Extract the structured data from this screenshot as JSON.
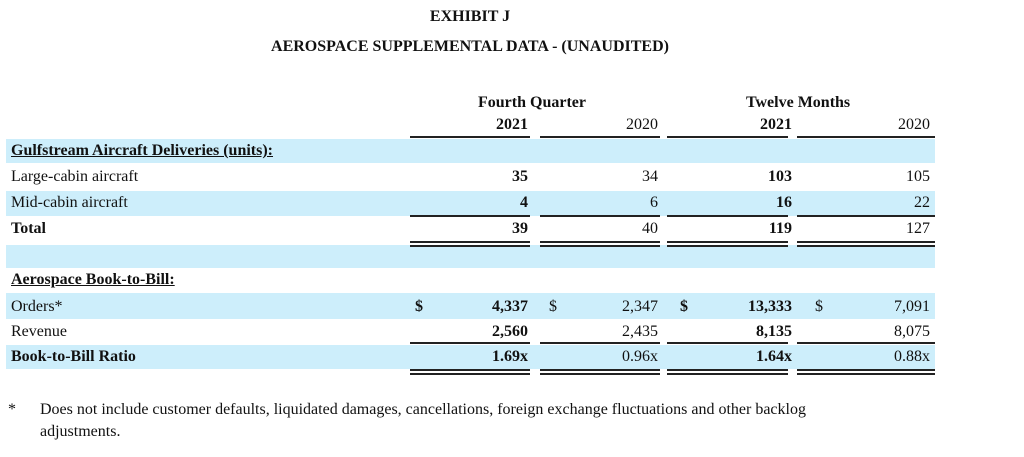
{
  "title": "EXHIBIT J",
  "subtitle": "AEROSPACE SUPPLEMENTAL DATA - (UNAUDITED)",
  "col_groups": [
    "Fourth Quarter",
    "Twelve Months"
  ],
  "col_years": [
    "2021",
    "2020",
    "2021",
    "2020"
  ],
  "band_color": "#cdeefb",
  "sections": [
    {
      "heading": "Gulfstream Aircraft Deliveries (units):",
      "rows": [
        {
          "label": "Large-cabin aircraft",
          "values": [
            "35",
            "34",
            "103",
            "105"
          ]
        },
        {
          "label": "Mid-cabin aircraft",
          "values": [
            "4",
            "6",
            "16",
            "22"
          ]
        },
        {
          "label": "Total",
          "values": [
            "39",
            "40",
            "119",
            "127"
          ],
          "bold": true
        }
      ]
    },
    {
      "heading": "Aerospace Book-to-Bill:",
      "rows": [
        {
          "label": "Orders*",
          "values": [
            "4,337",
            "2,347",
            "13,333",
            "7,091"
          ],
          "currency": "$"
        },
        {
          "label": "Revenue",
          "values": [
            "2,560",
            "2,435",
            "8,135",
            "8,075"
          ]
        },
        {
          "label": "Book-to-Bill Ratio",
          "values": [
            "1.69x",
            "0.96x",
            "1.64x",
            "0.88x"
          ],
          "bold": true
        }
      ]
    }
  ],
  "footnote": {
    "marker": "*",
    "text": "Does not include customer defaults, liquidated damages, cancellations, foreign exchange fluctuations and other backlog",
    "text2": "adjustments."
  }
}
